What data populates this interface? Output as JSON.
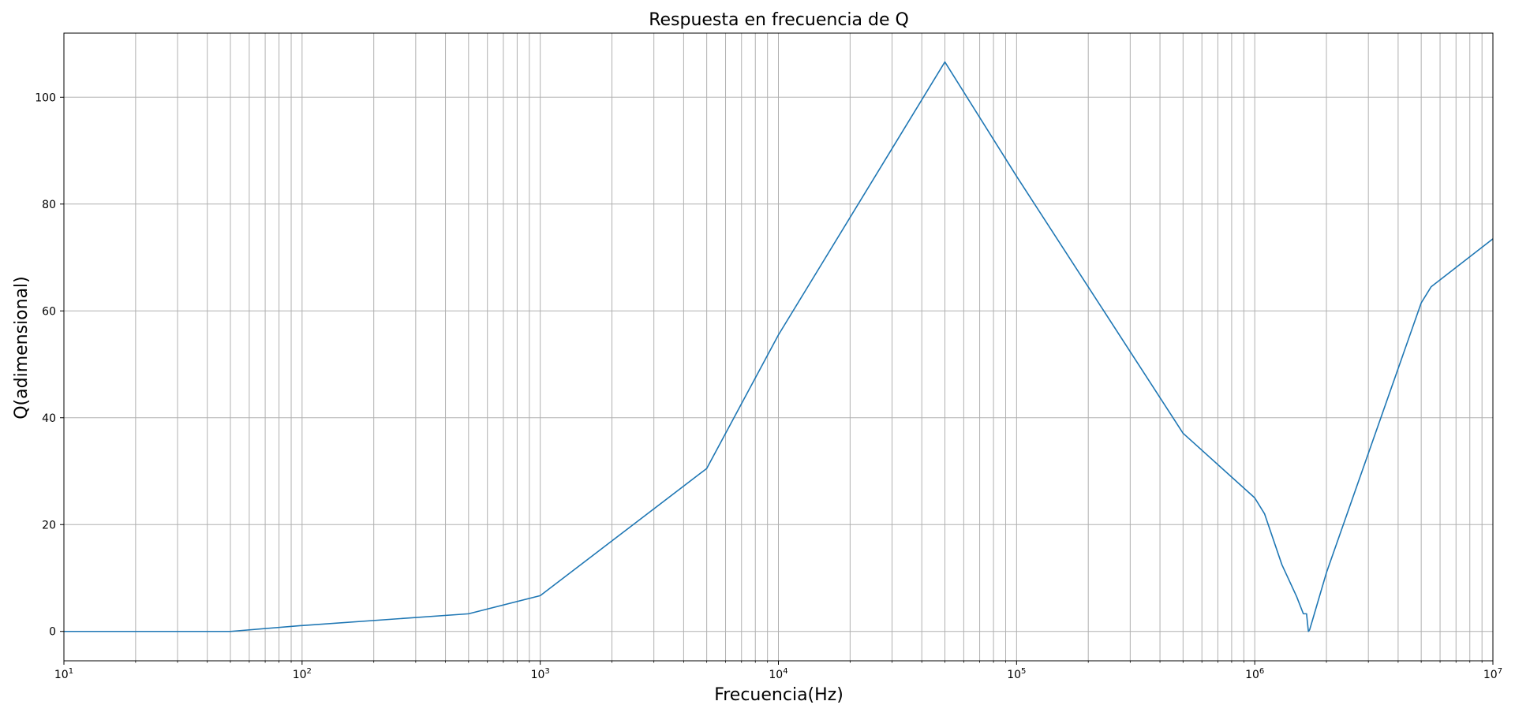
{
  "chart_data": {
    "type": "line",
    "title": "Respuesta en frecuencia de Q",
    "xlabel": "Frecuencia(Hz)",
    "ylabel": "Q(adimensional)",
    "xscale": "log",
    "xlim": [
      10,
      10000000
    ],
    "ylim": [
      -5.5,
      112
    ],
    "grid": true,
    "x_ticks": [
      {
        "value": 10,
        "mant": "10",
        "exp": "1"
      },
      {
        "value": 100,
        "mant": "10",
        "exp": "2"
      },
      {
        "value": 1000,
        "mant": "10",
        "exp": "3"
      },
      {
        "value": 10000,
        "mant": "10",
        "exp": "4"
      },
      {
        "value": 100000,
        "mant": "10",
        "exp": "5"
      },
      {
        "value": 1000000,
        "mant": "10",
        "exp": "6"
      },
      {
        "value": 10000000,
        "mant": "10",
        "exp": "7"
      }
    ],
    "y_ticks": [
      0,
      20,
      40,
      60,
      80,
      100
    ],
    "line_color": "#1f77b4",
    "grid_color": "#b0b0b0",
    "series": [
      {
        "x": [
          10,
          50,
          100,
          500,
          1000,
          5000,
          10000,
          50000,
          100000,
          500000,
          1000000,
          1100000,
          1300000,
          1500000,
          1600000,
          1650000,
          1680000,
          1700000,
          1750000,
          2000000,
          5000000,
          5500000,
          10000000
        ],
        "y": [
          0,
          0,
          1.1,
          3.3,
          6.7,
          30.5,
          55.5,
          106.6,
          85.2,
          37.1,
          25.0,
          22.0,
          12.5,
          6.5,
          3.3,
          3.3,
          0,
          0.3,
          2.2,
          11.0,
          61.5,
          64.5,
          73.5
        ]
      }
    ]
  }
}
